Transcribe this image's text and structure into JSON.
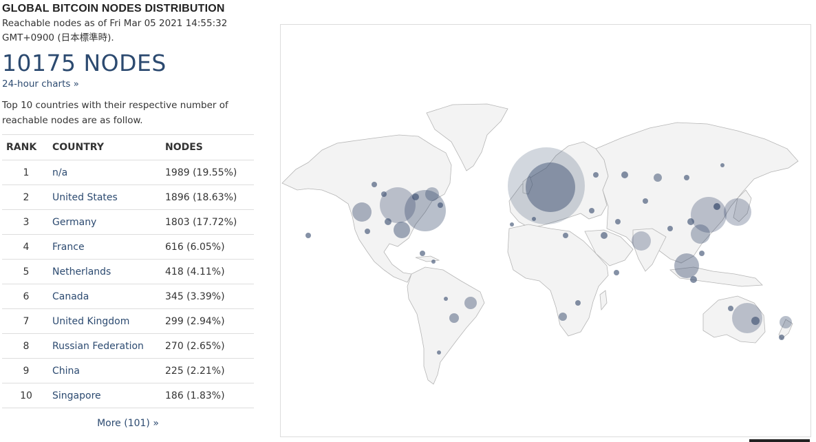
{
  "header": {
    "title": "GLOBAL BITCOIN NODES DISTRIBUTION",
    "subtitle": "Reachable nodes as of Fri Mar 05 2021 14:55:32 GMT+0900 (日本標準時).",
    "node_count": "10175 NODES",
    "charts_link": "24-hour charts »"
  },
  "description": "Top 10 countries with their respective number of reachable nodes are as follow.",
  "table": {
    "headers": [
      "RANK",
      "COUNTRY",
      "NODES"
    ],
    "rows": [
      {
        "rank": "1",
        "country": "n/a",
        "nodes": "1989 (19.55%)"
      },
      {
        "rank": "2",
        "country": "United States",
        "nodes": "1896 (18.63%)"
      },
      {
        "rank": "3",
        "country": "Germany",
        "nodes": "1803 (17.72%)"
      },
      {
        "rank": "4",
        "country": "France",
        "nodes": "616 (6.05%)"
      },
      {
        "rank": "5",
        "country": "Netherlands",
        "nodes": "418 (4.11%)"
      },
      {
        "rank": "6",
        "country": "Canada",
        "nodes": "345 (3.39%)"
      },
      {
        "rank": "7",
        "country": "United Kingdom",
        "nodes": "299 (2.94%)"
      },
      {
        "rank": "8",
        "country": "Russian Federation",
        "nodes": "270 (2.65%)"
      },
      {
        "rank": "9",
        "country": "China",
        "nodes": "225 (2.21%)"
      },
      {
        "rank": "10",
        "country": "Singapore",
        "nodes": "186 (1.83%)"
      }
    ]
  },
  "more_link": "More (101) »",
  "colors": {
    "accent": "#2c4a70",
    "land": "#f3f3f3",
    "border": "#b5b5b5",
    "marker": "#34476a"
  }
}
